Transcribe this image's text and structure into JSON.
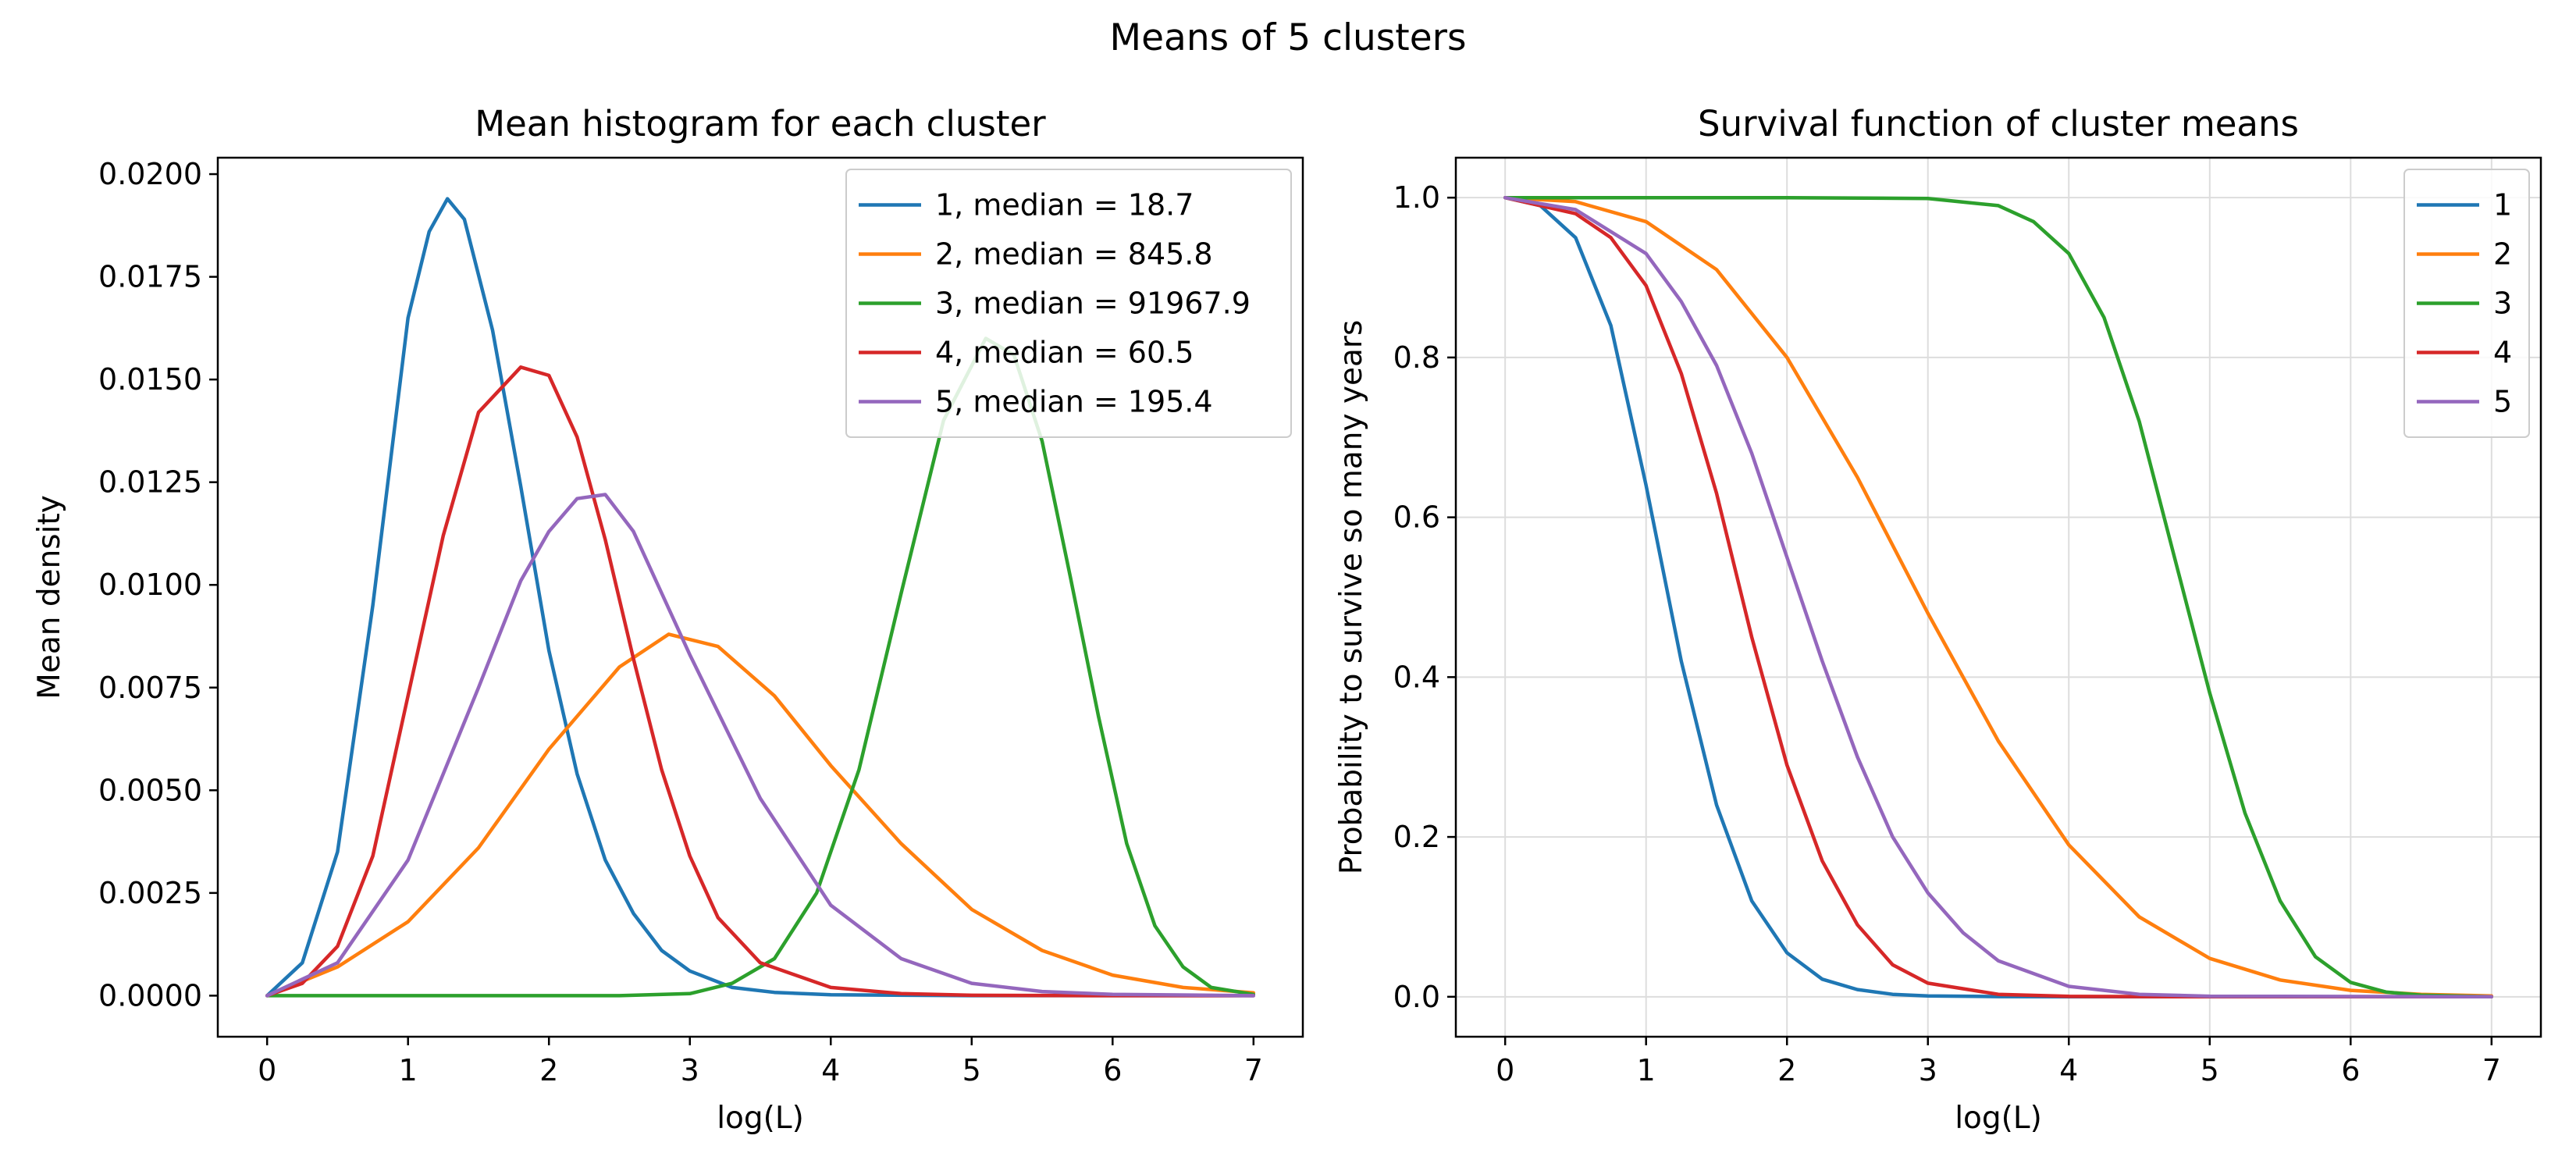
{
  "figure": {
    "title": "Means of 5 clusters"
  },
  "colors": {
    "1": "#1f77b4",
    "2": "#ff7f0e",
    "3": "#2ca02c",
    "4": "#d62728",
    "5": "#9467bd"
  },
  "chart_data": [
    {
      "type": "line",
      "title": "Mean histogram for each cluster",
      "xlabel": "log(L)",
      "ylabel": "Mean density",
      "xlim": [
        -0.35,
        7.35
      ],
      "ylim": [
        -0.001,
        0.0204
      ],
      "xticks": [
        0,
        1,
        2,
        3,
        4,
        5,
        6,
        7
      ],
      "xtick_labels": [
        "0",
        "1",
        "2",
        "3",
        "4",
        "5",
        "6",
        "7"
      ],
      "yticks": [
        0.0,
        0.0025,
        0.005,
        0.0075,
        0.01,
        0.0125,
        0.015,
        0.0175,
        0.02
      ],
      "ytick_labels": [
        "0.0000",
        "0.0025",
        "0.0050",
        "0.0075",
        "0.0100",
        "0.0125",
        "0.0150",
        "0.0175",
        "0.0200"
      ],
      "grid": false,
      "legend": "top-right",
      "series": [
        {
          "name": "1, median = 18.7",
          "color": "#1f77b4",
          "x": [
            0,
            0.25,
            0.5,
            0.75,
            1.0,
            1.15,
            1.28,
            1.4,
            1.6,
            1.8,
            2.0,
            2.2,
            2.4,
            2.6,
            2.8,
            3.0,
            3.3,
            3.6,
            4.0,
            5.0,
            6.0,
            7.0
          ],
          "y": [
            0.0,
            0.0008,
            0.0035,
            0.0095,
            0.0165,
            0.0186,
            0.0194,
            0.0189,
            0.0162,
            0.0124,
            0.0084,
            0.0054,
            0.0033,
            0.002,
            0.0011,
            0.0006,
            0.0002,
            8e-05,
            2e-05,
            0,
            0,
            0
          ]
        },
        {
          "name": "2, median = 845.8",
          "color": "#ff7f0e",
          "x": [
            0,
            0.5,
            1.0,
            1.5,
            2.0,
            2.5,
            2.85,
            3.2,
            3.6,
            4.0,
            4.5,
            5.0,
            5.5,
            6.0,
            6.5,
            7.0
          ],
          "y": [
            0.0,
            0.0007,
            0.0018,
            0.0036,
            0.006,
            0.008,
            0.0088,
            0.0085,
            0.0073,
            0.0056,
            0.0037,
            0.0021,
            0.0011,
            0.0005,
            0.0002,
            7e-05
          ]
        },
        {
          "name": "3, median = 91967.9",
          "color": "#2ca02c",
          "x": [
            0,
            2.0,
            2.5,
            3.0,
            3.3,
            3.6,
            3.9,
            4.2,
            4.5,
            4.8,
            5.1,
            5.3,
            5.5,
            5.7,
            5.9,
            6.1,
            6.3,
            6.5,
            6.7,
            7.0
          ],
          "y": [
            0.0,
            0.0,
            0.0,
            5e-05,
            0.0003,
            0.0009,
            0.0025,
            0.0055,
            0.0098,
            0.014,
            0.016,
            0.0156,
            0.0135,
            0.0102,
            0.0068,
            0.0037,
            0.0017,
            0.0007,
            0.0002,
            3e-05
          ]
        },
        {
          "name": "4, median = 60.5",
          "color": "#d62728",
          "x": [
            0,
            0.25,
            0.5,
            0.75,
            1.0,
            1.25,
            1.5,
            1.8,
            2.0,
            2.2,
            2.4,
            2.6,
            2.8,
            3.0,
            3.2,
            3.5,
            4.0,
            4.5,
            5.0,
            6.0,
            7.0
          ],
          "y": [
            0.0,
            0.0003,
            0.0012,
            0.0034,
            0.0073,
            0.0112,
            0.0142,
            0.0153,
            0.0151,
            0.0136,
            0.0111,
            0.0082,
            0.0055,
            0.0034,
            0.0019,
            0.0008,
            0.0002,
            5e-05,
            1e-05,
            0,
            0
          ]
        },
        {
          "name": "5, median = 195.4",
          "color": "#9467bd",
          "x": [
            0,
            0.5,
            1.0,
            1.5,
            1.8,
            2.0,
            2.2,
            2.4,
            2.6,
            3.0,
            3.5,
            4.0,
            4.5,
            5.0,
            5.5,
            6.0,
            7.0
          ],
          "y": [
            0.0,
            0.0008,
            0.0033,
            0.0075,
            0.0101,
            0.0113,
            0.0121,
            0.0122,
            0.0113,
            0.0083,
            0.0048,
            0.0022,
            0.0009,
            0.0003,
            0.0001,
            3e-05,
            0.0
          ]
        }
      ]
    },
    {
      "type": "line",
      "title": "Survival function of cluster means",
      "xlabel": "log(L)",
      "ylabel": "Probability to survive so many years",
      "xlim": [
        -0.35,
        7.35
      ],
      "ylim": [
        -0.05,
        1.05
      ],
      "xticks": [
        0,
        1,
        2,
        3,
        4,
        5,
        6,
        7
      ],
      "xtick_labels": [
        "0",
        "1",
        "2",
        "3",
        "4",
        "5",
        "6",
        "7"
      ],
      "yticks": [
        0.0,
        0.2,
        0.4,
        0.6,
        0.8,
        1.0
      ],
      "ytick_labels": [
        "0.0",
        "0.2",
        "0.4",
        "0.6",
        "0.8",
        "1.0"
      ],
      "grid": true,
      "legend": "top-right",
      "series": [
        {
          "name": "1",
          "color": "#1f77b4",
          "x": [
            0,
            0.25,
            0.5,
            0.75,
            1.0,
            1.25,
            1.5,
            1.75,
            2.0,
            2.25,
            2.5,
            2.75,
            3.0,
            3.5,
            4.0,
            5.0,
            6.0,
            7.0
          ],
          "y": [
            1.0,
            0.99,
            0.95,
            0.84,
            0.64,
            0.42,
            0.24,
            0.12,
            0.055,
            0.022,
            0.009,
            0.003,
            0.001,
            0.0002,
            0.0,
            0.0,
            0.0,
            0.0
          ]
        },
        {
          "name": "2",
          "color": "#ff7f0e",
          "x": [
            0,
            0.5,
            1.0,
            1.5,
            2.0,
            2.5,
            3.0,
            3.5,
            4.0,
            4.5,
            5.0,
            5.5,
            6.0,
            6.5,
            7.0
          ],
          "y": [
            1.0,
            0.995,
            0.97,
            0.91,
            0.8,
            0.65,
            0.48,
            0.32,
            0.19,
            0.1,
            0.048,
            0.021,
            0.008,
            0.003,
            0.001
          ]
        },
        {
          "name": "3",
          "color": "#2ca02c",
          "x": [
            0,
            2.0,
            3.0,
            3.5,
            3.75,
            4.0,
            4.25,
            4.5,
            4.75,
            5.0,
            5.25,
            5.5,
            5.75,
            6.0,
            6.25,
            6.5,
            7.0
          ],
          "y": [
            1.0,
            1.0,
            0.999,
            0.99,
            0.97,
            0.93,
            0.85,
            0.72,
            0.55,
            0.38,
            0.23,
            0.12,
            0.05,
            0.018,
            0.006,
            0.002,
            0.0
          ]
        },
        {
          "name": "4",
          "color": "#d62728",
          "x": [
            0,
            0.5,
            0.75,
            1.0,
            1.25,
            1.5,
            1.75,
            2.0,
            2.25,
            2.5,
            2.75,
            3.0,
            3.5,
            4.0,
            5.0,
            7.0
          ],
          "y": [
            1.0,
            0.98,
            0.95,
            0.89,
            0.78,
            0.63,
            0.45,
            0.29,
            0.17,
            0.09,
            0.04,
            0.017,
            0.003,
            0.0005,
            0.0,
            0.0
          ]
        },
        {
          "name": "5",
          "color": "#9467bd",
          "x": [
            0,
            0.5,
            1.0,
            1.25,
            1.5,
            1.75,
            2.0,
            2.25,
            2.5,
            2.75,
            3.0,
            3.25,
            3.5,
            4.0,
            4.5,
            5.0,
            7.0
          ],
          "y": [
            1.0,
            0.985,
            0.93,
            0.87,
            0.79,
            0.68,
            0.55,
            0.42,
            0.3,
            0.2,
            0.13,
            0.08,
            0.045,
            0.013,
            0.003,
            0.0007,
            0.0
          ]
        }
      ]
    }
  ]
}
